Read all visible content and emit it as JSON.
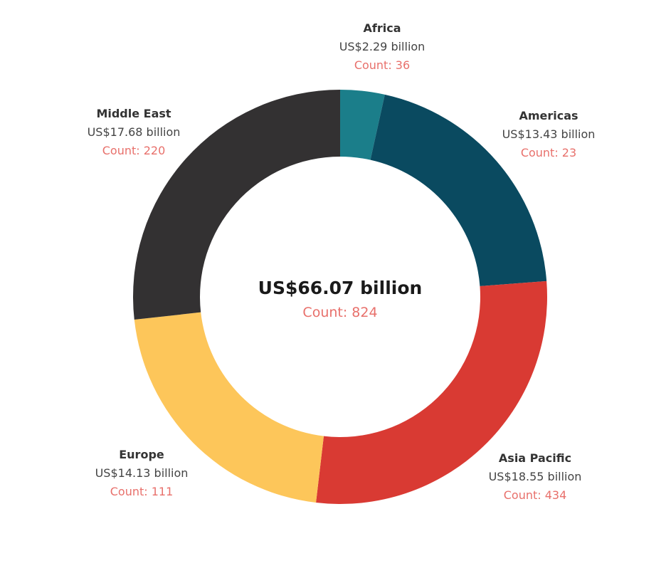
{
  "chart_data": {
    "type": "pie",
    "variant": "donut",
    "categories": [
      "Africa",
      "Americas",
      "Asia Pacific",
      "Europe",
      "Middle East"
    ],
    "values": [
      2.29,
      13.43,
      18.55,
      14.13,
      17.68
    ],
    "value_labels": [
      "US$2.29 billion",
      "US$13.43 billion",
      "US$18.55 billion",
      "US$14.13 billion",
      "US$17.68 billion"
    ],
    "counts": [
      36,
      23,
      434,
      111,
      220
    ],
    "count_labels": [
      "Count: 36",
      "Count: 23",
      "Count: 434",
      "Count: 111",
      "Count: 220"
    ],
    "colors": [
      "#1b7e8a",
      "#0a4a60",
      "#d93a33",
      "#fdc65a",
      "#333132"
    ],
    "count_color": "#e8706b",
    "total_label": "US$66.07 billion",
    "total_count_label": "Count: 824",
    "start_angle_deg": 0,
    "direction": "clockwise"
  }
}
